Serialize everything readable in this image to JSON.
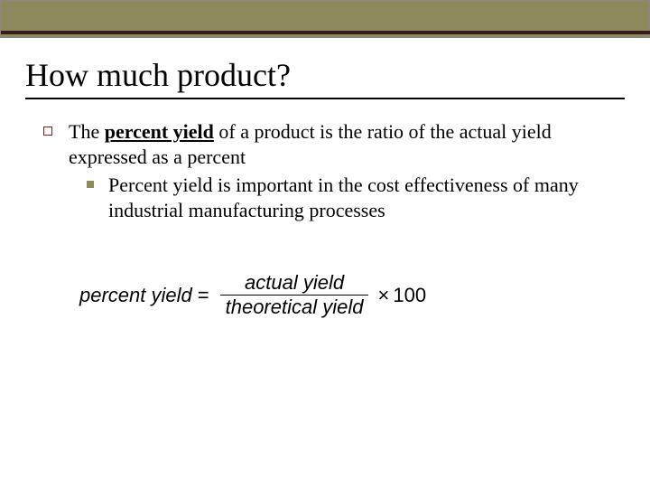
{
  "colors": {
    "topbar_bg": "#8a8a5c",
    "dark_line": "#3a1a1a",
    "bullet_border": "#8a1a1a",
    "sub_bullet_fill": "#8a8a5c",
    "text": "#000000",
    "background": "#ffffff"
  },
  "title": "How much product?",
  "main": {
    "pre": "The ",
    "emph": "percent yield",
    "post": " of a product is the ratio of the actual yield expressed as a percent"
  },
  "sub": "Percent yield is important in the cost effectiveness of many industrial manufacturing processes",
  "formula": {
    "lhs": "percent yield",
    "eq": "=",
    "numerator": "actual yield",
    "denominator": "theoretical yield",
    "times": "×",
    "factor": "100"
  }
}
